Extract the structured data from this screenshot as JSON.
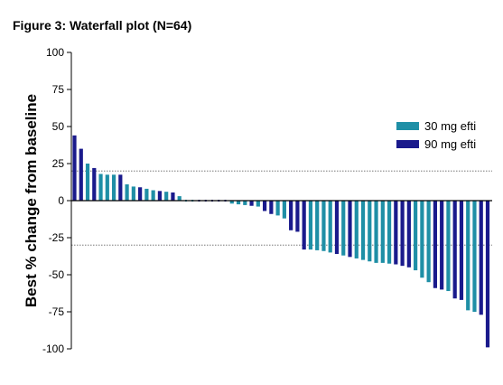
{
  "title": "Figure 3: Waterfall plot (N=64)",
  "chart_data": {
    "type": "bar",
    "title": "Figure 3: Waterfall plot (N=64)",
    "xlabel": "",
    "ylabel": "Best % change from baseline",
    "ylim": [
      -100,
      100
    ],
    "yticks": [
      100,
      75,
      50,
      25,
      0,
      -25,
      -50,
      -75,
      -100
    ],
    "reference_lines": [
      20,
      -30
    ],
    "grid": false,
    "legend_position": "top-right",
    "colors": {
      "30 mg efti": "#1f8fa6",
      "90 mg efti": "#1a1a8c"
    },
    "series": [
      {
        "name": "30 mg efti"
      },
      {
        "name": "90 mg efti"
      }
    ],
    "bars": [
      {
        "v": 44,
        "s": "90 mg efti"
      },
      {
        "v": 35,
        "s": "90 mg efti"
      },
      {
        "v": 25,
        "s": "30 mg efti"
      },
      {
        "v": 22,
        "s": "90 mg efti"
      },
      {
        "v": 18,
        "s": "30 mg efti"
      },
      {
        "v": 17.5,
        "s": "30 mg efti"
      },
      {
        "v": 17.5,
        "s": "30 mg efti"
      },
      {
        "v": 17.5,
        "s": "90 mg efti"
      },
      {
        "v": 11,
        "s": "30 mg efti"
      },
      {
        "v": 9.5,
        "s": "30 mg efti"
      },
      {
        "v": 9,
        "s": "90 mg efti"
      },
      {
        "v": 8,
        "s": "30 mg efti"
      },
      {
        "v": 7,
        "s": "30 mg efti"
      },
      {
        "v": 6.5,
        "s": "90 mg efti"
      },
      {
        "v": 6,
        "s": "30 mg efti"
      },
      {
        "v": 5.5,
        "s": "90 mg efti"
      },
      {
        "v": 3,
        "s": "30 mg efti"
      },
      {
        "v": 0,
        "s": "30 mg efti"
      },
      {
        "v": 0,
        "s": "30 mg efti"
      },
      {
        "v": 0,
        "s": "90 mg efti"
      },
      {
        "v": 0,
        "s": "90 mg efti"
      },
      {
        "v": 0,
        "s": "90 mg efti"
      },
      {
        "v": 0,
        "s": "90 mg efti"
      },
      {
        "v": 0,
        "s": "90 mg efti"
      },
      {
        "v": -2,
        "s": "30 mg efti"
      },
      {
        "v": -2.5,
        "s": "30 mg efti"
      },
      {
        "v": -3,
        "s": "30 mg efti"
      },
      {
        "v": -3.5,
        "s": "90 mg efti"
      },
      {
        "v": -4,
        "s": "30 mg efti"
      },
      {
        "v": -7,
        "s": "90 mg efti"
      },
      {
        "v": -9,
        "s": "90 mg efti"
      },
      {
        "v": -10,
        "s": "30 mg efti"
      },
      {
        "v": -12,
        "s": "30 mg efti"
      },
      {
        "v": -20,
        "s": "90 mg efti"
      },
      {
        "v": -21,
        "s": "90 mg efti"
      },
      {
        "v": -33,
        "s": "90 mg efti"
      },
      {
        "v": -33,
        "s": "30 mg efti"
      },
      {
        "v": -33.5,
        "s": "30 mg efti"
      },
      {
        "v": -34,
        "s": "30 mg efti"
      },
      {
        "v": -35,
        "s": "30 mg efti"
      },
      {
        "v": -36,
        "s": "90 mg efti"
      },
      {
        "v": -37,
        "s": "30 mg efti"
      },
      {
        "v": -38,
        "s": "90 mg efti"
      },
      {
        "v": -39,
        "s": "30 mg efti"
      },
      {
        "v": -40,
        "s": "30 mg efti"
      },
      {
        "v": -41,
        "s": "30 mg efti"
      },
      {
        "v": -42,
        "s": "30 mg efti"
      },
      {
        "v": -42,
        "s": "30 mg efti"
      },
      {
        "v": -42.5,
        "s": "30 mg efti"
      },
      {
        "v": -43,
        "s": "90 mg efti"
      },
      {
        "v": -44,
        "s": "90 mg efti"
      },
      {
        "v": -45,
        "s": "90 mg efti"
      },
      {
        "v": -47,
        "s": "30 mg efti"
      },
      {
        "v": -52,
        "s": "30 mg efti"
      },
      {
        "v": -55,
        "s": "30 mg efti"
      },
      {
        "v": -59,
        "s": "90 mg efti"
      },
      {
        "v": -60,
        "s": "90 mg efti"
      },
      {
        "v": -61,
        "s": "30 mg efti"
      },
      {
        "v": -66,
        "s": "90 mg efti"
      },
      {
        "v": -67,
        "s": "90 mg efti"
      },
      {
        "v": -74,
        "s": "30 mg efti"
      },
      {
        "v": -75,
        "s": "30 mg efti"
      },
      {
        "v": -77,
        "s": "90 mg efti"
      },
      {
        "v": -99,
        "s": "90 mg efti"
      }
    ]
  }
}
